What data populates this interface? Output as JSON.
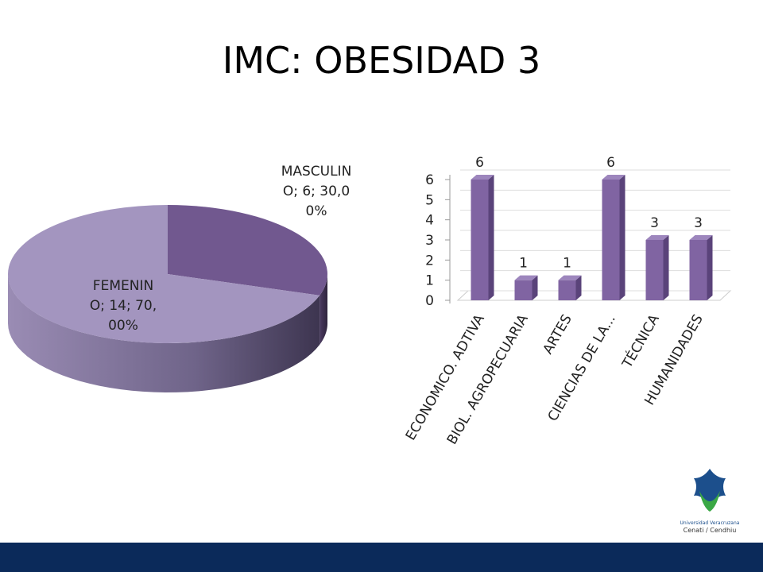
{
  "title": "IMC: OBESIDAD 3",
  "chart_data": [
    {
      "type": "pie",
      "values": [
        6,
        14
      ],
      "value_labels": [
        "MASCULINO; 6; 30,00%",
        "FEMENINO; 14; 70,00%"
      ],
      "colors": [
        "#71588f",
        "#a395bf"
      ]
    },
    {
      "type": "bar",
      "categories": [
        "ECONOMICO. ADTIVA",
        "BIOL. AGROPECUARIA",
        "ARTES",
        "CIENCIAS DE LA...",
        "TÉCNICA",
        "HUMANIDADES"
      ],
      "values": [
        6,
        1,
        1,
        6,
        3,
        3
      ],
      "color": "#8064a2",
      "ylim": [
        0,
        6
      ],
      "yticks": [
        0,
        1,
        2,
        3,
        4,
        5,
        6
      ],
      "grid": true
    }
  ],
  "logo": {
    "name": "Universidad Veracruzana",
    "unit": "Cenati / Cendhiu"
  }
}
